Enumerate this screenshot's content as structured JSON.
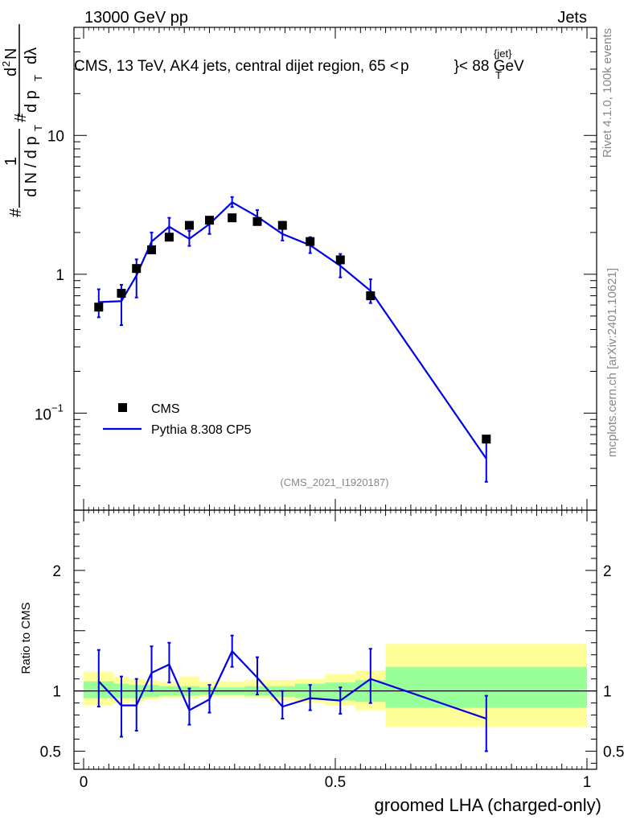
{
  "header": {
    "left": "13000 GeV pp",
    "right": "Jets"
  },
  "side_labels": {
    "top": "Rivet 4.1.0,  100k events",
    "bottom": "mcplots.cern.ch [arXiv:2401.10621]"
  },
  "main_title_parts": {
    "pre": "CMS, 13 TeV, AK4 jets, central dijet region, 65 <",
    "p": "p",
    "sub": "T",
    "sup": "{jet}",
    "post": "}< 88 GeV"
  },
  "ylabel_parts": {
    "hash": "#",
    "one": "1",
    "dN": "d N / d p",
    "T": "T",
    "hash2": "#",
    "d2N": "d",
    "sq": "2",
    "N": "N",
    "dpT": "d p",
    "dlam": "dλ"
  },
  "watermark": "(CMS_2021_I1920187)",
  "legend": {
    "data": "CMS",
    "mc": "Pythia 8.308 CP5"
  },
  "ratio_ylabel": "Ratio to CMS",
  "xlabel": "groomed LHA (charged-only)",
  "colors": {
    "mc": "#0000e6",
    "data": "#000000",
    "band_inner": "#99ff99",
    "band_outer": "#ffff99",
    "watermark": "#888888"
  },
  "chart_data": {
    "type": "scatter",
    "xlim": [
      0,
      1
    ],
    "main": {
      "yscale": "log",
      "ylim": [
        0.02,
        60
      ],
      "y_ticks": [
        {
          "value": 0.1,
          "label": "10",
          "exp": "−1"
        },
        {
          "value": 1,
          "label": "1"
        },
        {
          "value": 10,
          "label": "10"
        }
      ]
    },
    "ratio": {
      "ylim": [
        0.35,
        2.5
      ],
      "y_ticks": [
        {
          "value": 0.5,
          "label": "0.5"
        },
        {
          "value": 1,
          "label": "1"
        },
        {
          "value": 2,
          "label": "2"
        }
      ]
    },
    "x_ticks": [
      {
        "value": 0,
        "label": "0"
      },
      {
        "value": 0.5,
        "label": "0.5"
      },
      {
        "value": 1,
        "label": "1"
      }
    ],
    "bin_edges": [
      0.0,
      0.06,
      0.09,
      0.12,
      0.15,
      0.19,
      0.23,
      0.27,
      0.32,
      0.37,
      0.42,
      0.48,
      0.54,
      0.6,
      1.0
    ],
    "data_series": {
      "name": "CMS",
      "x": [
        0.03,
        0.075,
        0.105,
        0.135,
        0.17,
        0.21,
        0.25,
        0.295,
        0.345,
        0.395,
        0.45,
        0.51,
        0.57,
        0.8
      ],
      "y": [
        0.58,
        0.73,
        1.1,
        1.5,
        1.85,
        2.25,
        2.45,
        2.55,
        2.4,
        2.25,
        1.72,
        1.27,
        0.7,
        0.065
      ]
    },
    "mc_series": {
      "name": "Pythia 8.308 CP5",
      "x": [
        0.03,
        0.075,
        0.105,
        0.135,
        0.17,
        0.21,
        0.25,
        0.295,
        0.345,
        0.395,
        0.45,
        0.51,
        0.57,
        0.8
      ],
      "y": [
        0.63,
        0.64,
        0.98,
        1.72,
        2.2,
        1.8,
        2.3,
        3.3,
        2.6,
        1.95,
        1.62,
        1.15,
        0.76,
        0.047
      ],
      "y_lo": [
        0.49,
        0.43,
        0.68,
        1.48,
        1.85,
        1.6,
        1.95,
        3.05,
        2.3,
        1.75,
        1.42,
        0.95,
        0.62,
        0.032
      ],
      "y_hi": [
        0.78,
        0.84,
        1.28,
        2.0,
        2.55,
        2.05,
        2.55,
        3.6,
        2.9,
        2.2,
        1.85,
        1.4,
        0.92,
        0.062
      ]
    },
    "ratio_series": {
      "name": "Pythia 8.308 CP5 / CMS",
      "x": [
        0.03,
        0.075,
        0.105,
        0.135,
        0.17,
        0.21,
        0.25,
        0.295,
        0.345,
        0.395,
        0.45,
        0.51,
        0.57,
        0.8
      ],
      "y": [
        1.08,
        0.88,
        0.88,
        1.15,
        1.22,
        0.84,
        0.93,
        1.33,
        1.11,
        0.87,
        0.94,
        0.92,
        1.1,
        0.77
      ],
      "y_lo": [
        0.87,
        0.62,
        0.67,
        1.0,
        1.07,
        0.72,
        0.82,
        1.2,
        0.97,
        0.77,
        0.84,
        0.81,
        0.9,
        0.5
      ],
      "y_hi": [
        1.34,
        1.12,
        1.1,
        1.37,
        1.4,
        1.02,
        1.05,
        1.46,
        1.28,
        1.0,
        1.05,
        1.03,
        1.35,
        0.96
      ]
    },
    "band_inner_lo": [
      0.94,
      0.94,
      0.94,
      0.95,
      0.96,
      0.96,
      0.97,
      0.97,
      0.96,
      0.95,
      0.94,
      0.92,
      0.91,
      0.86
    ],
    "band_inner_hi": [
      1.08,
      1.06,
      1.05,
      1.05,
      1.04,
      1.04,
      1.03,
      1.03,
      1.04,
      1.04,
      1.06,
      1.07,
      1.09,
      1.2
    ],
    "band_outer_lo": [
      0.88,
      0.9,
      0.91,
      0.93,
      0.94,
      0.94,
      0.95,
      0.95,
      0.94,
      0.92,
      0.9,
      0.88,
      0.84,
      0.7
    ],
    "band_outer_hi": [
      1.16,
      1.12,
      1.1,
      1.09,
      1.08,
      1.12,
      1.08,
      1.08,
      1.09,
      1.09,
      1.1,
      1.14,
      1.17,
      1.39
    ]
  }
}
